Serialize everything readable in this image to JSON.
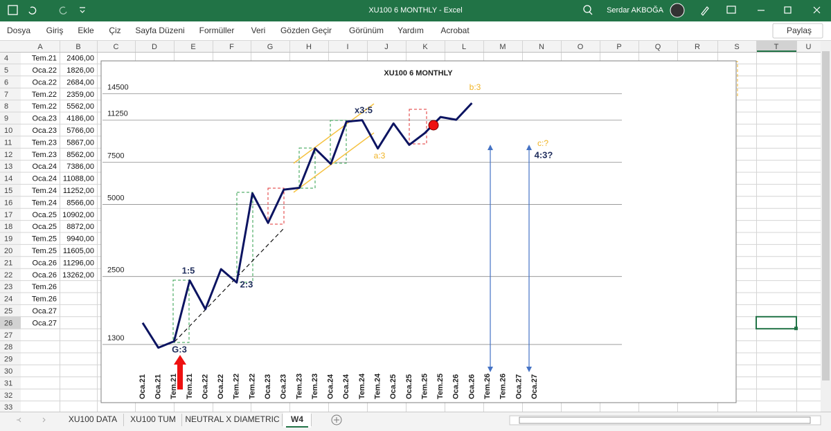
{
  "title_bar": {
    "title": "XU100 6 MONTHLY  -  Excel",
    "user": "Serdar AKBOĞA"
  },
  "ribbon": {
    "tabs": [
      "Dosya",
      "Giriş",
      "Ekle",
      "Çiz",
      "Sayfa Düzeni",
      "Formüller",
      "Veri",
      "Gözden Geçir",
      "Görünüm",
      "Yardım",
      "Acrobat"
    ],
    "share": "Paylaş"
  },
  "sheet": {
    "columns": [
      "A",
      "B",
      "C",
      "D",
      "E",
      "F",
      "G",
      "H",
      "I",
      "J",
      "K",
      "L",
      "M",
      "N",
      "O",
      "P",
      "Q",
      "R",
      "S",
      "T",
      "U"
    ],
    "rows": [
      4,
      5,
      6,
      7,
      8,
      9,
      10,
      11,
      12,
      13,
      14,
      15,
      16,
      17,
      18,
      19,
      20,
      21,
      22,
      23,
      24,
      25,
      26,
      27,
      28,
      29,
      30,
      31,
      32,
      33
    ],
    "cells": [
      [
        "Tem.21",
        "2406,00"
      ],
      [
        "Oca.22",
        "1826,00"
      ],
      [
        "Oca.22",
        "2684,00"
      ],
      [
        "Tem.22",
        "2359,00"
      ],
      [
        "Tem.22",
        "5562,00"
      ],
      [
        "Oca.23",
        "4186,00"
      ],
      [
        "Oca.23",
        "5766,00"
      ],
      [
        "Tem.23",
        "5867,00"
      ],
      [
        "Tem.23",
        "8562,00"
      ],
      [
        "Oca.24",
        "7386,00"
      ],
      [
        "Oca.24",
        "11088,00"
      ],
      [
        "Tem.24",
        "11252,00"
      ],
      [
        "Tem.24",
        "8566,00"
      ],
      [
        "Oca.25",
        "10902,00"
      ],
      [
        "Oca.25",
        "8872,00"
      ],
      [
        "Tem.25",
        "9940,00"
      ],
      [
        "Tem.25",
        "11605,00"
      ],
      [
        "Oca.26",
        "11296,00"
      ],
      [
        "Oca.26",
        "13262,00"
      ],
      [
        "Tem.26"
      ],
      [
        "Tem.26"
      ],
      [
        "Oca.27"
      ],
      [
        "Oca.27"
      ]
    ]
  },
  "chart_data": {
    "type": "line",
    "title": "XU100 6 MONTHLY",
    "categories": [
      "Oca.21",
      "Oca.21",
      "Tem.21",
      "Tem.21",
      "Oca.22",
      "Oca.22",
      "Tem.22",
      "Tem.22",
      "Oca.23",
      "Oca.23",
      "Tem.23",
      "Tem.23",
      "Oca.24",
      "Oca.24",
      "Tem.24",
      "Tem.24",
      "Oca.25",
      "Oca.25",
      "Tem.25",
      "Tem.25",
      "Oca.26",
      "Oca.26",
      "Tem.26",
      "Tem.26",
      "Oca.27",
      "Oca.27"
    ],
    "values": [
      1600,
      1260,
      1340,
      2406,
      1826,
      2684,
      2359,
      5562,
      4186,
      5766,
      5867,
      8562,
      7386,
      11088,
      11252,
      8566,
      10902,
      8872,
      9940,
      11605,
      11296,
      13262,
      null,
      null,
      null,
      null
    ],
    "color": "#0c1461",
    "log_scale": true,
    "ylim": [
      1050,
      19000
    ],
    "yticks": [
      1300,
      2500,
      5000,
      7500,
      11250,
      14500
    ],
    "grid": true,
    "annotations": [
      "1:5",
      "2:3",
      "G:3",
      "x3:5",
      "a:3",
      "b:3",
      "c:?",
      "4:3?"
    ]
  },
  "sheet_tabs": [
    "XU100 DATA",
    "XU100 TUM",
    "NEUTRAL X DIAMETRIC",
    "W4"
  ]
}
